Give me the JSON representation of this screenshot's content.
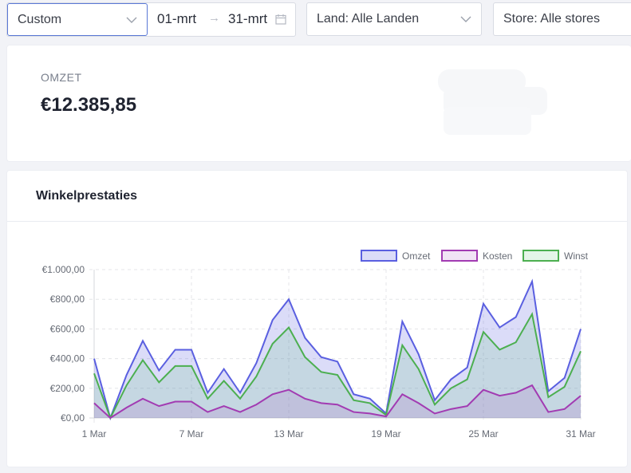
{
  "filters": {
    "range_mode": "Custom",
    "date_start": "01-mrt",
    "date_end": "31-mrt",
    "date_separator": "→",
    "country": "Land: Alle Landen",
    "store": "Store: Alle stores"
  },
  "stats": {
    "revenue_label": "OMZET",
    "revenue_value": "€12.385,85"
  },
  "chart_card": {
    "title": "Winkelprestaties"
  },
  "colors": {
    "omzet": "#5a5fe0",
    "kosten": "#a23bb2",
    "winst": "#4caf50"
  },
  "chart_data": {
    "type": "area",
    "x": [
      "1 Mar",
      "2 Mar",
      "3 Mar",
      "4 Mar",
      "5 Mar",
      "6 Mar",
      "7 Mar",
      "8 Mar",
      "9 Mar",
      "10 Mar",
      "11 Mar",
      "12 Mar",
      "13 Mar",
      "14 Mar",
      "15 Mar",
      "16 Mar",
      "17 Mar",
      "18 Mar",
      "19 Mar",
      "20 Mar",
      "21 Mar",
      "22 Mar",
      "23 Mar",
      "24 Mar",
      "25 Mar",
      "26 Mar",
      "27 Mar",
      "28 Mar",
      "29 Mar",
      "30 Mar",
      "31 Mar"
    ],
    "x_tick_labels": [
      "1 Mar",
      "7 Mar",
      "13 Mar",
      "19 Mar",
      "25 Mar",
      "31 Mar"
    ],
    "y_tick_labels": [
      "€0,00",
      "€200,00",
      "€400,00",
      "€600,00",
      "€800,00",
      "€1.000,00"
    ],
    "ylim": [
      0,
      1000
    ],
    "grid": true,
    "legend_position": "top-right",
    "series": [
      {
        "name": "Omzet",
        "values": [
          400,
          0,
          290,
          520,
          320,
          460,
          460,
          170,
          330,
          170,
          370,
          660,
          800,
          540,
          410,
          380,
          160,
          130,
          30,
          650,
          430,
          120,
          260,
          340,
          770,
          610,
          680,
          920,
          180,
          270,
          600
        ]
      },
      {
        "name": "Kosten",
        "values": [
          100,
          0,
          70,
          130,
          80,
          110,
          110,
          40,
          80,
          40,
          90,
          160,
          190,
          130,
          100,
          90,
          40,
          30,
          10,
          160,
          100,
          30,
          60,
          80,
          190,
          150,
          170,
          220,
          40,
          60,
          150
        ]
      },
      {
        "name": "Winst",
        "values": [
          300,
          0,
          220,
          390,
          240,
          350,
          350,
          130,
          250,
          130,
          280,
          500,
          610,
          410,
          310,
          290,
          120,
          100,
          20,
          490,
          330,
          90,
          200,
          260,
          580,
          460,
          510,
          700,
          140,
          210,
          450
        ]
      }
    ]
  }
}
